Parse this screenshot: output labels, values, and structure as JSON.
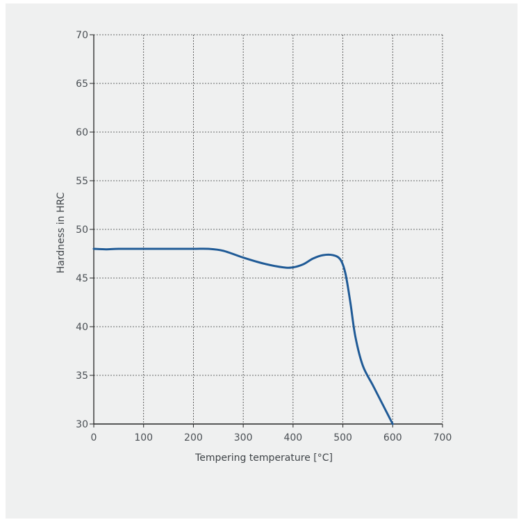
{
  "chart_data": {
    "type": "line",
    "title": "",
    "xlabel": "Tempering temperature [°C]",
    "ylabel": "Hardness in HRC",
    "xlim": [
      0,
      700
    ],
    "ylim": [
      30,
      70
    ],
    "xticks": [
      0,
      100,
      200,
      300,
      400,
      500,
      600,
      700
    ],
    "yticks": [
      30,
      35,
      40,
      45,
      50,
      55,
      60,
      65,
      70
    ],
    "grid": true,
    "series": [
      {
        "color": "#1f5a96",
        "x": [
          0,
          25,
          50,
          100,
          150,
          200,
          230,
          260,
          300,
          340,
          380,
          400,
          420,
          440,
          460,
          480,
          495,
          505,
          515,
          525,
          540,
          560,
          580,
          600
        ],
        "y": [
          48.0,
          47.95,
          48.0,
          48.0,
          48.0,
          48.0,
          48.0,
          47.8,
          47.1,
          46.5,
          46.1,
          46.1,
          46.4,
          47.0,
          47.35,
          47.35,
          46.9,
          45.5,
          42.5,
          39.0,
          36.0,
          34.0,
          32.0,
          30.0
        ]
      }
    ]
  }
}
